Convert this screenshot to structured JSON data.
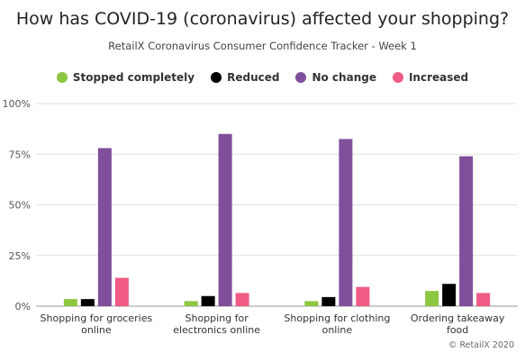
{
  "chart_data": {
    "type": "bar",
    "title": "How has COVID-19 (coronavirus) affected your shopping?",
    "subtitle": "RetailX Coronavirus Consumer Confidence Tracker - Week 1",
    "categories": [
      [
        "Shopping for groceries",
        "online"
      ],
      [
        "Shopping for",
        "electronics online"
      ],
      [
        "Shopping for clothing",
        "online"
      ],
      [
        "Ordering takeaway",
        "food"
      ]
    ],
    "series": [
      {
        "name": "Stopped completely",
        "color": "#8dc63f",
        "values": [
          3.5,
          2.5,
          2.5,
          7.5
        ]
      },
      {
        "name": "Reduced",
        "color": "#000000",
        "values": [
          3.5,
          5,
          4.5,
          11
        ]
      },
      {
        "name": "No change",
        "color": "#7f4f9b",
        "values": [
          78,
          85,
          82.5,
          74
        ]
      },
      {
        "name": "Increased",
        "color": "#ef5b84",
        "values": [
          14,
          6.5,
          9.5,
          6.5
        ]
      }
    ],
    "yticks": [
      "0%",
      "25%",
      "50%",
      "75%",
      "100%"
    ],
    "ylim": [
      0,
      100
    ],
    "grid": true,
    "legend_position": "top"
  },
  "credit": "© RetailX 2020"
}
